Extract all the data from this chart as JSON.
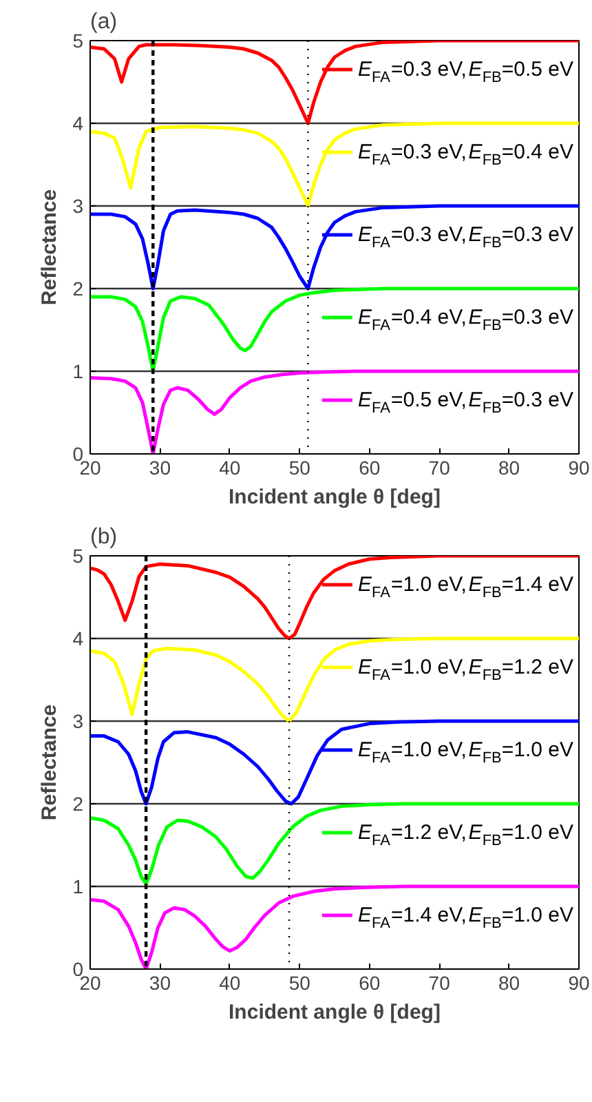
{
  "chart_data": [
    {
      "type": "line",
      "title": "(a)",
      "xlabel": "Incident angle θ [deg]",
      "ylabel": "Reflectance",
      "xlim": [
        20,
        90
      ],
      "ylim": [
        0,
        5
      ],
      "xticks": [
        20,
        30,
        40,
        50,
        60,
        70,
        80,
        90
      ],
      "yticks": [
        0,
        1,
        2,
        3,
        4,
        5
      ],
      "grid": "y",
      "legend": "right",
      "line_style": "solid",
      "series": [
        {
          "name": "E$_{FA}$=0.3 eV,E$_{FB}$=0.5 eV",
          "color": "#ff0000",
          "x": [
            20,
            22,
            23.5,
            24.5,
            25.5,
            27,
            28,
            32,
            36,
            40,
            42,
            44,
            46,
            47,
            48,
            49,
            50,
            51.2,
            52,
            53,
            54,
            55,
            56.5,
            58,
            62,
            70,
            80,
            90
          ],
          "values": [
            4.92,
            4.9,
            4.78,
            4.5,
            4.78,
            4.93,
            4.95,
            4.95,
            4.94,
            4.92,
            4.9,
            4.85,
            4.76,
            4.68,
            4.55,
            4.4,
            4.22,
            4.0,
            4.25,
            4.5,
            4.68,
            4.8,
            4.88,
            4.93,
            4.98,
            5.0,
            5.0,
            5.0
          ]
        },
        {
          "name": "E$_{FA}$=0.3 eV,E$_{FB}$=0.4 eV",
          "color": "#ffff00",
          "x": [
            20,
            22,
            23.5,
            24.5,
            25.8,
            27,
            28,
            30,
            35,
            40,
            42,
            44,
            46,
            47,
            48,
            49,
            50,
            51.2,
            52,
            53,
            54,
            55,
            56.5,
            58,
            62,
            70,
            80,
            90
          ],
          "values": [
            3.9,
            3.88,
            3.82,
            3.6,
            3.22,
            3.7,
            3.9,
            3.95,
            3.96,
            3.94,
            3.92,
            3.88,
            3.78,
            3.7,
            3.57,
            3.4,
            3.22,
            3.0,
            3.25,
            3.5,
            3.68,
            3.8,
            3.88,
            3.93,
            3.98,
            4.0,
            4.0,
            4.0
          ]
        },
        {
          "name": "E$_{FA}$=0.3 eV,E$_{FB}$=0.3 eV",
          "color": "#0000ff",
          "x": [
            20,
            23,
            25,
            26.5,
            27.5,
            28.3,
            29,
            29.7,
            30.5,
            31.5,
            32.5,
            35,
            40,
            42,
            44,
            46,
            47,
            48,
            49,
            50,
            51.2,
            52,
            53,
            54,
            55,
            56.5,
            58,
            62,
            70,
            80,
            90
          ],
          "values": [
            2.9,
            2.9,
            2.87,
            2.78,
            2.6,
            2.3,
            2.0,
            2.3,
            2.7,
            2.9,
            2.94,
            2.95,
            2.92,
            2.9,
            2.85,
            2.74,
            2.62,
            2.48,
            2.32,
            2.15,
            2.0,
            2.25,
            2.5,
            2.68,
            2.8,
            2.88,
            2.93,
            2.98,
            3.0,
            3.0,
            3.0
          ]
        },
        {
          "name": "E$_{FA}$=0.4 eV,E$_{FB}$=0.3 eV",
          "color": "#00ff00",
          "x": [
            20,
            23,
            25,
            26.5,
            27.5,
            28.3,
            29,
            29.7,
            30.5,
            31.5,
            33,
            35,
            37,
            39,
            40.5,
            41.5,
            42.2,
            43,
            44,
            45,
            46,
            48,
            50,
            52,
            55,
            62,
            70,
            80,
            90
          ],
          "values": [
            1.9,
            1.9,
            1.87,
            1.78,
            1.6,
            1.3,
            1.0,
            1.3,
            1.65,
            1.85,
            1.9,
            1.88,
            1.8,
            1.58,
            1.38,
            1.28,
            1.25,
            1.3,
            1.45,
            1.6,
            1.72,
            1.85,
            1.92,
            1.95,
            1.98,
            2.0,
            2.0,
            2.0,
            2.0
          ]
        },
        {
          "name": "E$_{FA}$=0.5 eV,E$_{FB}$=0.3 eV",
          "color": "#ff00ff",
          "x": [
            20,
            23,
            25,
            26.5,
            27.5,
            28.3,
            29,
            29.7,
            30.5,
            31.5,
            32.5,
            34,
            35.5,
            36.8,
            37.8,
            38.8,
            40,
            41.5,
            43,
            45,
            47.5,
            50,
            53,
            58,
            70,
            80,
            90
          ],
          "values": [
            0.92,
            0.91,
            0.88,
            0.8,
            0.62,
            0.3,
            0.0,
            0.3,
            0.6,
            0.77,
            0.8,
            0.77,
            0.66,
            0.54,
            0.48,
            0.54,
            0.68,
            0.8,
            0.88,
            0.93,
            0.96,
            0.98,
            0.99,
            1.0,
            1.0,
            1.0,
            1.0
          ]
        }
      ],
      "ref_lines": [
        {
          "axis": "x",
          "value": 29,
          "line_style": "dashed",
          "color": "#000000"
        },
        {
          "axis": "x",
          "value": 51.2,
          "line_style": "dotted",
          "color": "#000000"
        }
      ]
    },
    {
      "type": "line",
      "title": "(b)",
      "xlabel": "Incident angle θ [deg]",
      "ylabel": "Reflectance",
      "xlim": [
        20,
        90
      ],
      "ylim": [
        0,
        5
      ],
      "xticks": [
        20,
        30,
        40,
        50,
        60,
        70,
        80,
        90
      ],
      "yticks": [
        0,
        1,
        2,
        3,
        4,
        5
      ],
      "grid": "y",
      "legend": "right",
      "line_style": "solid",
      "series": [
        {
          "name": "E$_{FA}$=1.0 eV,E$_{FB}$=1.4 eV",
          "color": "#ff0000",
          "x": [
            20,
            21,
            22,
            23,
            24,
            25,
            26,
            27,
            28,
            30,
            34,
            38,
            40,
            42,
            44,
            45,
            46,
            47,
            47.8,
            48.5,
            49.3,
            50,
            51,
            52,
            53.5,
            55,
            57,
            60,
            63,
            70,
            80,
            90
          ],
          "values": [
            4.85,
            4.83,
            4.78,
            4.65,
            4.45,
            4.22,
            4.45,
            4.75,
            4.87,
            4.9,
            4.88,
            4.8,
            4.74,
            4.63,
            4.48,
            4.38,
            4.25,
            4.12,
            4.04,
            4.0,
            4.05,
            4.18,
            4.38,
            4.55,
            4.72,
            4.82,
            4.9,
            4.96,
            4.98,
            5.0,
            5.0,
            5.0
          ]
        },
        {
          "name": "E$_{FA}$=1.0 eV,E$_{FB}$=1.2 eV",
          "color": "#ffff00",
          "x": [
            20,
            22,
            23.5,
            24.8,
            26,
            27,
            28,
            29,
            31,
            35,
            38,
            40,
            42,
            44,
            45.5,
            46.5,
            47.5,
            48.5,
            49.5,
            50.5,
            52,
            53.5,
            55,
            57,
            60,
            64,
            70,
            80,
            90
          ],
          "values": [
            3.85,
            3.82,
            3.72,
            3.45,
            3.08,
            3.45,
            3.75,
            3.85,
            3.88,
            3.86,
            3.8,
            3.72,
            3.6,
            3.45,
            3.3,
            3.18,
            3.07,
            3.0,
            3.1,
            3.28,
            3.55,
            3.75,
            3.86,
            3.93,
            3.97,
            3.99,
            4.0,
            4.0,
            4.0
          ]
        },
        {
          "name": "E$_{FA}$=1.0 eV,E$_{FB}$=1.0 eV",
          "color": "#0000ff",
          "x": [
            20,
            22,
            24,
            25.5,
            26.5,
            27.3,
            28,
            28.8,
            29.7,
            30.5,
            32,
            34,
            38,
            40,
            42,
            44,
            45.5,
            46.8,
            48,
            48.8,
            49.8,
            51,
            52.5,
            54,
            56,
            60,
            64,
            70,
            80,
            90
          ],
          "values": [
            2.82,
            2.82,
            2.75,
            2.6,
            2.4,
            2.15,
            2.0,
            2.2,
            2.55,
            2.75,
            2.86,
            2.87,
            2.8,
            2.72,
            2.6,
            2.45,
            2.3,
            2.15,
            2.03,
            2.0,
            2.08,
            2.3,
            2.58,
            2.77,
            2.9,
            2.97,
            2.99,
            3.0,
            3.0,
            3.0
          ]
        },
        {
          "name": "E$_{FA}$=1.2 eV,E$_{FB}$=1.0 eV",
          "color": "#00ff00",
          "x": [
            20,
            22,
            24,
            25.5,
            26.5,
            27.3,
            28,
            28.8,
            29.8,
            31,
            32.5,
            34,
            36,
            38,
            39.5,
            41,
            42.3,
            43.3,
            44.3,
            45.5,
            47,
            49,
            51,
            53,
            56,
            60,
            65,
            70,
            80,
            90
          ],
          "values": [
            1.83,
            1.8,
            1.7,
            1.5,
            1.32,
            1.12,
            1.03,
            1.2,
            1.5,
            1.72,
            1.8,
            1.79,
            1.72,
            1.6,
            1.45,
            1.25,
            1.12,
            1.1,
            1.18,
            1.32,
            1.52,
            1.72,
            1.85,
            1.92,
            1.97,
            1.99,
            2.0,
            2.0,
            2.0,
            2.0
          ]
        },
        {
          "name": "E$_{FA}$=1.4 eV,E$_{FB}$=1.0 eV",
          "color": "#ff00ff",
          "x": [
            20,
            22,
            24,
            25.5,
            26.5,
            27.3,
            28,
            28.8,
            29.7,
            30.7,
            32,
            33.5,
            35,
            36.5,
            38,
            39,
            40,
            41,
            42.3,
            43.5,
            45,
            47,
            49,
            52,
            55,
            60,
            65,
            70,
            80,
            90
          ],
          "values": [
            0.84,
            0.82,
            0.72,
            0.52,
            0.32,
            0.12,
            0.0,
            0.2,
            0.5,
            0.68,
            0.74,
            0.72,
            0.64,
            0.52,
            0.36,
            0.27,
            0.22,
            0.26,
            0.36,
            0.5,
            0.65,
            0.8,
            0.88,
            0.94,
            0.97,
            0.99,
            1.0,
            1.0,
            1.0,
            1.0
          ]
        }
      ],
      "ref_lines": [
        {
          "axis": "x",
          "value": 28,
          "line_style": "dashed",
          "color": "#000000"
        },
        {
          "axis": "x",
          "value": 48.5,
          "line_style": "dotted",
          "color": "#000000"
        }
      ]
    }
  ]
}
